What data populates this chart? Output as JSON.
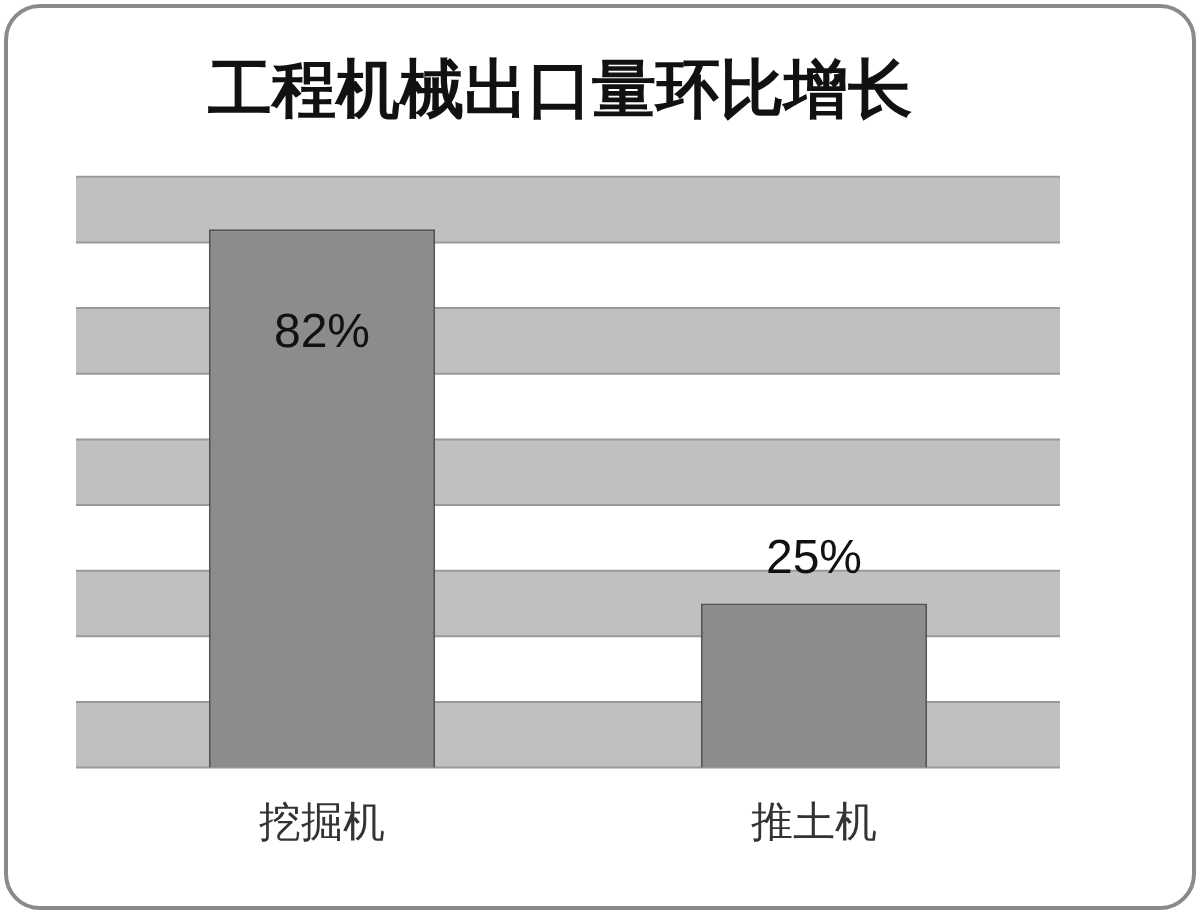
{
  "chart_data": {
    "type": "bar",
    "title": "工程机械出口量环比增长",
    "categories": [
      "挖掘机",
      "推土机"
    ],
    "values": [
      82,
      25
    ],
    "color": "#8c8c8c",
    "value_labels": [
      "82%",
      "25%"
    ],
    "ylim": [
      0,
      90
    ],
    "yticks": [
      {
        "value": 0,
        "label": null
      },
      {
        "value": 10,
        "label": null
      },
      {
        "value": 20,
        "label": null
      },
      {
        "value": 30,
        "label": null
      },
      {
        "value": 40,
        "label": null
      },
      {
        "value": 50,
        "label": null
      },
      {
        "value": 60,
        "label": null
      },
      {
        "value": 70,
        "label": null
      },
      {
        "value": 80,
        "label": null
      },
      {
        "value": 90,
        "label": null
      }
    ],
    "grid": "y",
    "tick_labels": "x"
  }
}
